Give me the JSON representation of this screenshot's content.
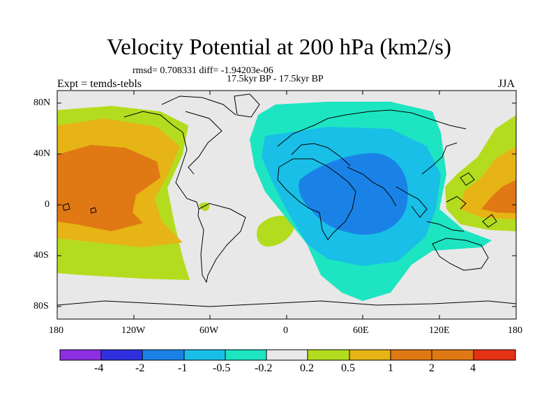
{
  "title": "Velocity Potential at 200 hPa (km2/s)",
  "stats": "rmsd= 0.708331 diff= -1.94203e-06",
  "period": "17.5kyr BP - 17.5kyr BP",
  "experiment": "Expt = temds-tebls",
  "season": "JJA",
  "lat_labels": [
    "80N",
    "40N",
    "0",
    "40S",
    "80S"
  ],
  "lon_labels": [
    "180",
    "120W",
    "60W",
    "0",
    "60E",
    "120E",
    "180"
  ],
  "colorbar": {
    "labels": [
      "-4",
      "-2",
      "-1",
      "-0.5",
      "-0.2",
      "0.2",
      "0.5",
      "1",
      "2",
      "4"
    ],
    "colors": [
      "#8b2fe0",
      "#3030e0",
      "#1a82e6",
      "#19bfe6",
      "#1de5c2",
      "#e8e8e8",
      "#b4dc1e",
      "#e6b414",
      "#e07814",
      "#e63214"
    ]
  },
  "fields": {
    "neutral": "#e8e8e8",
    "pos_02": "#b4dc1e",
    "pos_05": "#e6b414",
    "pos_1": "#e07814",
    "neg_02": "#1de5c2",
    "neg_05": "#19bfe6",
    "neg_1": "#1a82e6"
  }
}
